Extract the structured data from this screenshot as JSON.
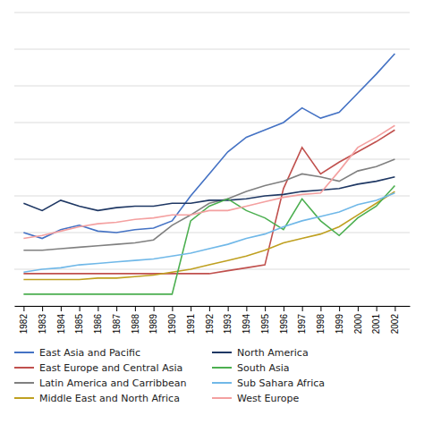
{
  "chart_data": {
    "type": "line",
    "x": [
      1982,
      1983,
      1984,
      1985,
      1986,
      1987,
      1988,
      1989,
      1990,
      1991,
      1992,
      1993,
      1994,
      1995,
      1996,
      1997,
      1998,
      1999,
      2000,
      2001,
      2002
    ],
    "series": [
      {
        "name": "East Asia and Pacific",
        "color": "#4472C4",
        "values": [
          5.0,
          4.6,
          5.2,
          5.5,
          5.1,
          5.0,
          5.2,
          5.3,
          5.8,
          7.5,
          9.0,
          10.5,
          11.5,
          12.0,
          12.5,
          13.5,
          12.8,
          13.2,
          14.5,
          15.8,
          17.2
        ]
      },
      {
        "name": "East Europe and Central Asia",
        "color": "#C0504D",
        "values": [
          2.2,
          2.2,
          2.2,
          2.2,
          2.2,
          2.2,
          2.2,
          2.2,
          2.2,
          2.2,
          2.2,
          2.4,
          2.6,
          2.8,
          8.0,
          10.8,
          9.0,
          9.8,
          10.5,
          11.2,
          12.0
        ]
      },
      {
        "name": "Latin America and Carribbean",
        "color": "#808080",
        "values": [
          3.8,
          3.8,
          3.9,
          4.0,
          4.1,
          4.2,
          4.3,
          4.5,
          5.5,
          6.2,
          7.0,
          7.3,
          7.8,
          8.2,
          8.5,
          9.0,
          8.8,
          8.5,
          9.2,
          9.5,
          10.0
        ]
      },
      {
        "name": "Middle East and North Africa",
        "color": "#BFA020",
        "values": [
          1.8,
          1.8,
          1.8,
          1.8,
          1.9,
          1.9,
          2.0,
          2.1,
          2.3,
          2.5,
          2.8,
          3.1,
          3.4,
          3.8,
          4.3,
          4.6,
          4.9,
          5.4,
          6.2,
          7.0,
          7.8
        ]
      },
      {
        "name": "North America",
        "color": "#1F3864",
        "values": [
          7.0,
          6.5,
          7.2,
          6.8,
          6.5,
          6.7,
          6.8,
          6.8,
          7.0,
          7.0,
          7.2,
          7.2,
          7.3,
          7.5,
          7.6,
          7.8,
          7.9,
          8.0,
          8.3,
          8.5,
          8.8
        ]
      },
      {
        "name": "South Asia",
        "color": "#4CAF50",
        "values": [
          0.8,
          0.8,
          0.8,
          0.8,
          0.8,
          0.8,
          0.8,
          0.8,
          0.8,
          5.8,
          6.8,
          7.3,
          6.5,
          6.0,
          5.2,
          7.3,
          5.8,
          4.8,
          6.0,
          6.8,
          8.2
        ]
      },
      {
        "name": "Sub Sahara Africa",
        "color": "#70B8E8",
        "values": [
          2.3,
          2.5,
          2.6,
          2.8,
          2.9,
          3.0,
          3.1,
          3.2,
          3.4,
          3.6,
          3.9,
          4.2,
          4.6,
          4.9,
          5.4,
          5.8,
          6.1,
          6.4,
          6.9,
          7.2,
          7.7
        ]
      },
      {
        "name": "West Europe",
        "color": "#F4A0A0",
        "values": [
          4.6,
          4.8,
          5.1,
          5.4,
          5.6,
          5.7,
          5.9,
          6.0,
          6.2,
          6.2,
          6.5,
          6.5,
          6.8,
          7.1,
          7.4,
          7.6,
          7.7,
          9.2,
          10.8,
          11.5,
          12.3
        ]
      }
    ],
    "xlim": [
      1981.5,
      2002.8
    ],
    "xticks": [
      1982,
      1983,
      1984,
      1985,
      1986,
      1987,
      1988,
      1989,
      1990,
      1991,
      1992,
      1993,
      1994,
      1995,
      1996,
      1997,
      1998,
      1999,
      2000,
      2001,
      2002
    ],
    "ylim": [
      0,
      20
    ],
    "yticks": [
      0,
      2.5,
      5,
      7.5,
      10,
      12.5,
      15,
      17.5,
      20
    ],
    "grid": true,
    "tick_labels": "x"
  }
}
